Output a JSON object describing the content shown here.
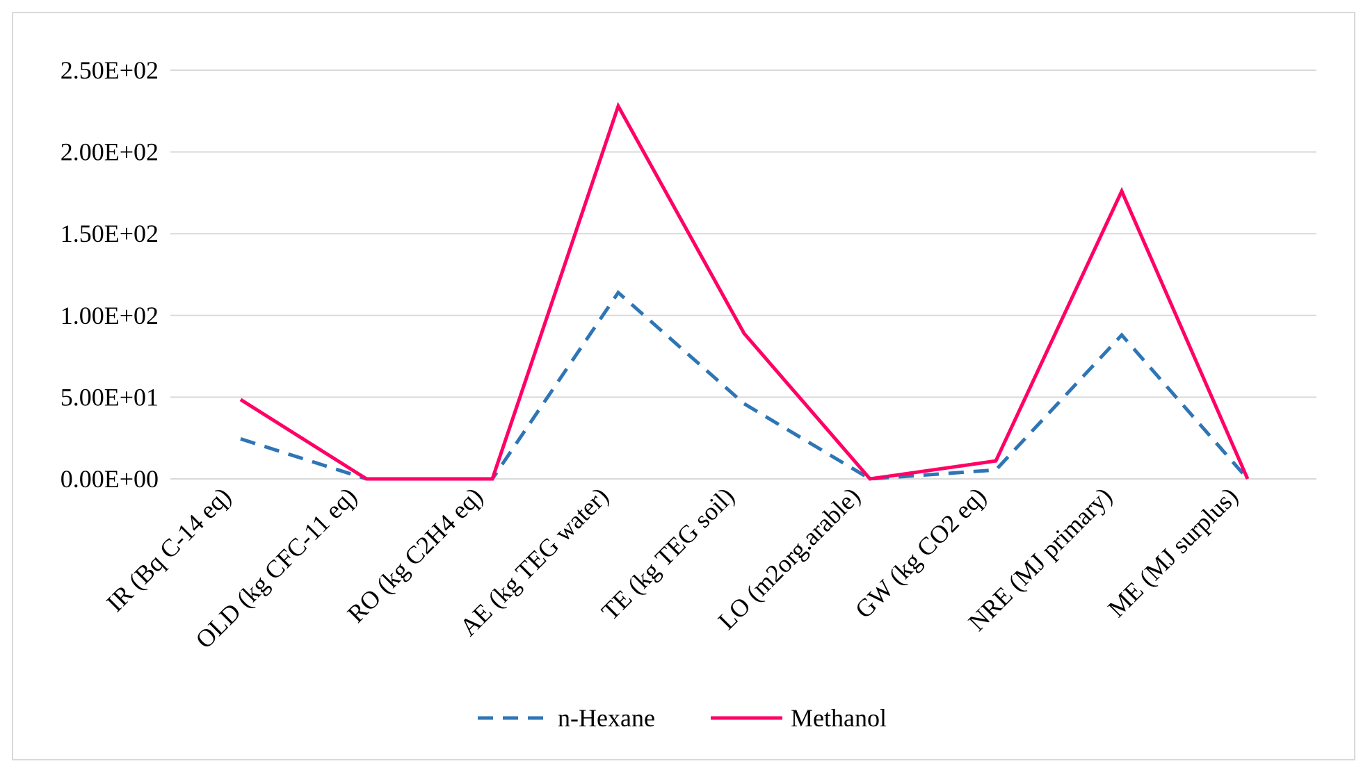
{
  "chart_data": {
    "type": "line",
    "title": "",
    "xlabel": "",
    "ylabel": "",
    "categories": [
      "IR (Bq C-14 eq)",
      "OLD (kg CFC-11 eq)",
      "RO (kg C2H4 eq)",
      "AE (kg TEG water)",
      "TE (kg TEG soil)",
      "LO (m2org.arable)",
      "GW (kg CO2 eq)",
      "NRE (MJ primary)",
      "ME (MJ surplus)"
    ],
    "series": [
      {
        "name": "n-Hexane",
        "color": "#2e75b6",
        "style": "dashed",
        "values": [
          24.5,
          0.0,
          0.0,
          114,
          46,
          0.0,
          5.5,
          88,
          0.0
        ]
      },
      {
        "name": "Methanol",
        "color": "#ff0066",
        "style": "solid",
        "values": [
          48.5,
          0.0,
          0.0,
          228,
          89,
          0.0,
          11,
          176,
          0.0
        ]
      }
    ],
    "yticks": [
      0,
      50,
      100,
      150,
      200,
      250
    ],
    "ytick_labels": [
      "0.00E+00",
      "5.00E+01",
      "1.00E+02",
      "1.50E+02",
      "2.00E+02",
      "2.50E+02"
    ],
    "ylim": [
      0,
      250
    ],
    "grid": true,
    "legend_position": "bottom"
  }
}
